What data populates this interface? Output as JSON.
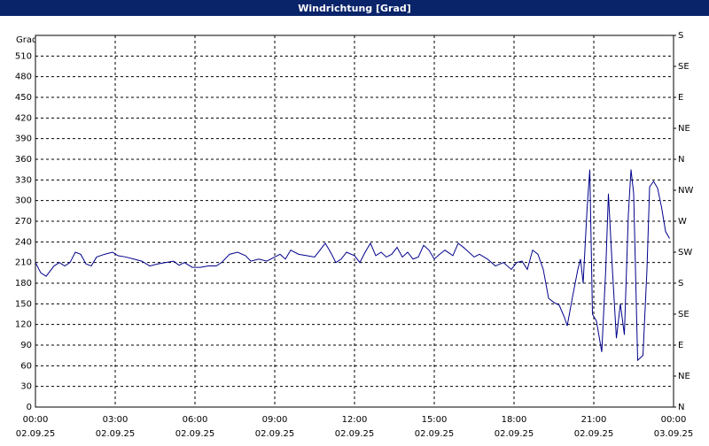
{
  "chart_data": {
    "type": "line",
    "title": "Windrichtung [Grad]",
    "y_label": "Grad",
    "xlim": [
      0,
      24
    ],
    "xticks": [
      {
        "value": 0,
        "label": [
          "00:00",
          "02.09.25"
        ]
      },
      {
        "value": 3,
        "label": [
          "03:00",
          "02.09.25"
        ]
      },
      {
        "value": 6,
        "label": [
          "06:00",
          "02.09.25"
        ]
      },
      {
        "value": 9,
        "label": [
          "09:00",
          "02.09.25"
        ]
      },
      {
        "value": 12,
        "label": [
          "12:00",
          "02.09.25"
        ]
      },
      {
        "value": 15,
        "label": [
          "15:00",
          "02.09.25"
        ]
      },
      {
        "value": 18,
        "label": [
          "18:00",
          "02.09.25"
        ]
      },
      {
        "value": 21,
        "label": [
          "21:00",
          "02.09.25"
        ]
      },
      {
        "value": 24,
        "label": [
          "00:00",
          "03.09.25"
        ]
      }
    ],
    "ylim": [
      0,
      540
    ],
    "yticks": [
      0,
      30,
      60,
      90,
      120,
      150,
      180,
      210,
      240,
      270,
      300,
      330,
      360,
      390,
      420,
      450,
      480,
      510
    ],
    "y2lim": [
      0,
      540
    ],
    "y2ticks": [
      {
        "value": 0,
        "label": "N"
      },
      {
        "value": 45,
        "label": "NE"
      },
      {
        "value": 90,
        "label": "E"
      },
      {
        "value": 135,
        "label": "SE"
      },
      {
        "value": 180,
        "label": "S"
      },
      {
        "value": 225,
        "label": "SW"
      },
      {
        "value": 270,
        "label": "W"
      },
      {
        "value": 315,
        "label": "NW"
      },
      {
        "value": 360,
        "label": "N"
      },
      {
        "value": 405,
        "label": "NE"
      },
      {
        "value": 450,
        "label": "E"
      },
      {
        "value": 495,
        "label": "SE"
      },
      {
        "value": 540,
        "label": "S"
      }
    ],
    "grid": true,
    "series": [
      {
        "color": "#00008b",
        "x": [
          0,
          0.2,
          0.4,
          0.7,
          0.9,
          1.1,
          1.3,
          1.5,
          1.7,
          1.9,
          2.1,
          2.3,
          2.6,
          2.9,
          3.1,
          3.4,
          3.7,
          4.0,
          4.3,
          4.6,
          4.9,
          5.2,
          5.4,
          5.6,
          5.9,
          6.2,
          6.5,
          6.8,
          7.0,
          7.3,
          7.6,
          7.9,
          8.1,
          8.4,
          8.7,
          9.0,
          9.2,
          9.4,
          9.6,
          9.9,
          10.2,
          10.5,
          10.7,
          10.9,
          11.1,
          11.3,
          11.5,
          11.7,
          12.0,
          12.2,
          12.4,
          12.6,
          12.8,
          13.0,
          13.2,
          13.4,
          13.6,
          13.8,
          14.0,
          14.2,
          14.4,
          14.6,
          14.8,
          15.0,
          15.2,
          15.4,
          15.7,
          15.9,
          16.1,
          16.3,
          16.5,
          16.7,
          17.0,
          17.3,
          17.6,
          17.9,
          18.1,
          18.3,
          18.5,
          18.7,
          18.9,
          19.1,
          19.3,
          19.5,
          19.7,
          19.9,
          20.0,
          20.2,
          20.4,
          20.5,
          20.6,
          20.75,
          20.85,
          20.95,
          21.1,
          21.3,
          21.45,
          21.55,
          21.7,
          21.85,
          22.0,
          22.15,
          22.3,
          22.4,
          22.5,
          22.65,
          22.85,
          23.0,
          23.1,
          23.25,
          23.4,
          23.55,
          23.7,
          23.85
        ],
        "values": [
          210,
          195,
          190,
          205,
          210,
          205,
          210,
          225,
          222,
          208,
          205,
          218,
          222,
          225,
          220,
          218,
          215,
          212,
          205,
          208,
          210,
          212,
          206,
          210,
          203,
          203,
          205,
          205,
          210,
          222,
          225,
          220,
          212,
          215,
          212,
          218,
          222,
          215,
          228,
          222,
          220,
          218,
          228,
          238,
          225,
          210,
          215,
          225,
          220,
          210,
          225,
          238,
          220,
          225,
          218,
          222,
          232,
          218,
          225,
          215,
          218,
          235,
          228,
          215,
          222,
          228,
          220,
          238,
          232,
          225,
          218,
          222,
          215,
          205,
          210,
          200,
          210,
          212,
          200,
          228,
          222,
          200,
          158,
          152,
          148,
          130,
          118,
          160,
          200,
          215,
          180,
          290,
          345,
          135,
          125,
          80,
          200,
          310,
          200,
          100,
          150,
          105,
          280,
          345,
          310,
          68,
          75,
          200,
          320,
          328,
          318,
          290,
          255,
          245
        ]
      }
    ]
  }
}
